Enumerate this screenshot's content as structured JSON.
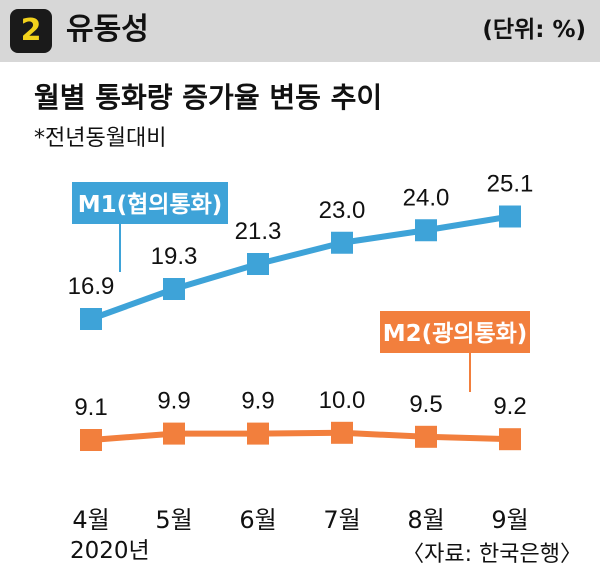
{
  "header": {
    "badge": "2",
    "title": "유동성",
    "unit": "(단위: %)"
  },
  "subtitle": "월별 통화량 증가율 변동 추이",
  "note": "*전년동월대비",
  "year_label": "2020년",
  "source": "〈자료: 한국은행〉",
  "colors": {
    "m1": "#3ea3d8",
    "m2": "#f27f3d",
    "header_bg": "#d7d7d7",
    "badge_bg": "#1a1a1a",
    "badge_fg": "#f2d21c"
  },
  "chart_data": {
    "type": "line",
    "categories": [
      "4월",
      "5월",
      "6월",
      "7월",
      "8월",
      "9월"
    ],
    "series": [
      {
        "name": "M1(협의통화)",
        "values": [
          16.9,
          19.3,
          21.3,
          23.0,
          24.0,
          25.1
        ]
      },
      {
        "name": "M2(광의통화)",
        "values": [
          9.1,
          9.9,
          9.9,
          10.0,
          9.5,
          9.2
        ]
      }
    ],
    "title": "월별 통화량 증가율 변동 추이",
    "xlabel": "",
    "ylabel": "",
    "grid": false,
    "legend": "callout-labels"
  }
}
